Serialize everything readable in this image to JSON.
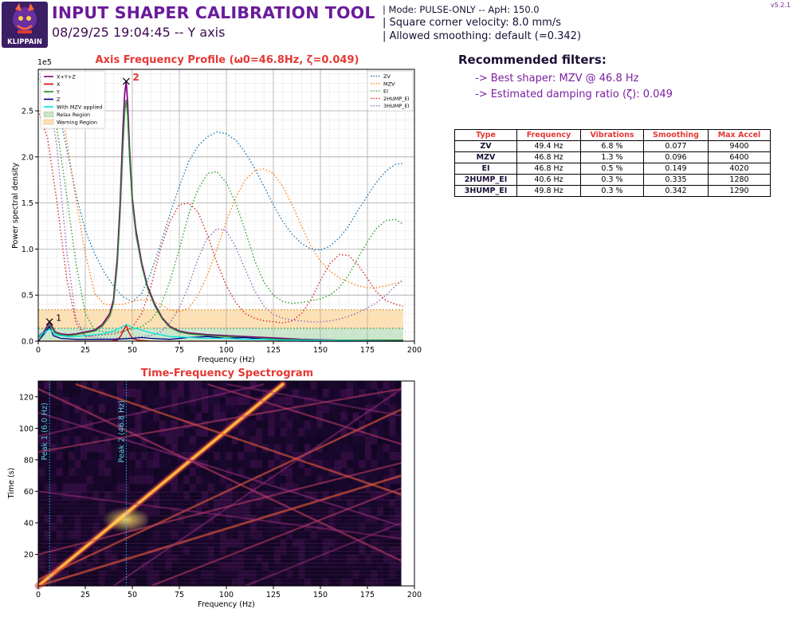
{
  "header": {
    "title": "INPUT SHAPER CALIBRATION TOOL",
    "subtitle": "08/29/25 19:04:45 -- Y axis",
    "logo_text": "KLIPPAIN",
    "version": "v5.2.1",
    "mode_line": "| Mode: PULSE-ONLY -- ApH: 150.0",
    "velocity_line": "| Square corner velocity: 8.0 mm/s",
    "smoothing_line": "| Allowed smoothing: default (=0.342)"
  },
  "recommendations": {
    "title": "Recommended filters:",
    "best": "-> Best shaper: MZV @ 46.8 Hz",
    "damping": "-> Estimated damping ratio (ζ): 0.049"
  },
  "filters_table": {
    "headers": [
      "Type",
      "Frequency",
      "Vibrations",
      "Smoothing",
      "Max Accel"
    ],
    "rows": [
      [
        "ZV",
        "49.4 Hz",
        "6.8 %",
        "0.077",
        "9400"
      ],
      [
        "MZV",
        "46.8 Hz",
        "1.3 %",
        "0.096",
        "6400"
      ],
      [
        "EI",
        "46.8 Hz",
        "0.5 %",
        "0.149",
        "4020"
      ],
      [
        "2HUMP_EI",
        "40.6 Hz",
        "0.3 %",
        "0.335",
        "1280"
      ],
      [
        "3HUMP_EI",
        "49.8 Hz",
        "0.3 %",
        "0.342",
        "1290"
      ]
    ]
  },
  "colors": {
    "title_purple": "#6a1b9a",
    "chart_title": "#e53935",
    "relax_region": "#c8e6c9",
    "warning_region": "#ffe0b2"
  },
  "chart_data": [
    {
      "type": "line",
      "title": "Axis Frequency Profile (ω0=46.8Hz, ζ=0.049)",
      "xlabel": "Frequency (Hz)",
      "ylabel": "Power spectral density",
      "y_exponent": "1e5",
      "xlim": [
        0,
        200
      ],
      "ylim": [
        0,
        2.95
      ],
      "xticks": [
        0,
        25,
        50,
        75,
        100,
        125,
        150,
        175,
        200
      ],
      "yticks": [
        0.0,
        0.5,
        1.0,
        1.5,
        2.0,
        2.5
      ],
      "grid": true,
      "relax_region": [
        0,
        0.14
      ],
      "warning_region": [
        0.14,
        0.34
      ],
      "peaks": [
        {
          "label": "1",
          "x": 6.0,
          "y": 0.21
        },
        {
          "label": "2",
          "x": 46.8,
          "y": 2.82
        }
      ],
      "legend_left": [
        "X+Y+Z",
        "X",
        "Y",
        "Z",
        "With MZV applied",
        "Relax Region",
        "Warning Region"
      ],
      "legend_left_colors": [
        "#800080",
        "#e00000",
        "#228b22",
        "#00008b",
        "#00e5e5",
        "#c8e6c9",
        "#ffe0b2"
      ],
      "series": [
        {
          "name": "X+Y+Z",
          "color": "#800080",
          "x": [
            0,
            3,
            6,
            9,
            12,
            16,
            20,
            25,
            30,
            34,
            38,
            40,
            42,
            43.5,
            45,
            46,
            46.8,
            47.5,
            48.5,
            50,
            52,
            55,
            58,
            62,
            66,
            70,
            75,
            80,
            90,
            100,
            110,
            120,
            130,
            140,
            150,
            160,
            170,
            180,
            194
          ],
          "y": [
            0.05,
            0.1,
            0.21,
            0.1,
            0.08,
            0.07,
            0.08,
            0.1,
            0.12,
            0.18,
            0.3,
            0.45,
            0.9,
            1.5,
            2.3,
            2.7,
            2.82,
            2.6,
            2.1,
            1.55,
            1.2,
            0.85,
            0.6,
            0.4,
            0.25,
            0.16,
            0.11,
            0.09,
            0.07,
            0.06,
            0.05,
            0.04,
            0.03,
            0.02,
            0.015,
            0.01,
            0.01,
            0.01,
            0.01
          ]
        },
        {
          "name": "X",
          "color": "#e00000",
          "x": [
            0,
            38,
            42,
            44,
            45.5,
            46.8,
            48,
            50,
            53,
            60,
            194
          ],
          "y": [
            0.0,
            0.0,
            0.01,
            0.06,
            0.13,
            0.17,
            0.1,
            0.03,
            0.01,
            0.0,
            0.0
          ]
        },
        {
          "name": "Y",
          "color": "#228b22",
          "x": [
            0,
            3,
            6,
            9,
            12,
            16,
            20,
            25,
            30,
            34,
            38,
            40,
            42,
            43.5,
            45,
            46,
            46.8,
            47.5,
            48.5,
            50,
            52,
            55,
            58,
            62,
            66,
            70,
            75,
            80,
            90,
            100,
            110,
            120,
            130,
            140,
            150,
            160,
            170,
            180,
            194
          ],
          "y": [
            0.04,
            0.08,
            0.18,
            0.09,
            0.07,
            0.06,
            0.07,
            0.09,
            0.11,
            0.16,
            0.27,
            0.41,
            0.82,
            1.38,
            2.1,
            2.5,
            2.62,
            2.45,
            2.0,
            1.5,
            1.15,
            0.82,
            0.58,
            0.38,
            0.24,
            0.15,
            0.1,
            0.08,
            0.06,
            0.05,
            0.04,
            0.03,
            0.02,
            0.015,
            0.01,
            0.01,
            0.01,
            0.01,
            0.01
          ]
        },
        {
          "name": "Z",
          "color": "#00008b",
          "x": [
            0,
            4,
            6,
            8,
            12,
            20,
            30,
            40,
            50,
            55,
            60,
            70,
            80,
            90,
            100,
            110,
            120,
            130,
            140,
            194
          ],
          "y": [
            0.0,
            0.1,
            0.16,
            0.06,
            0.03,
            0.02,
            0.02,
            0.02,
            0.03,
            0.04,
            0.03,
            0.02,
            0.04,
            0.05,
            0.03,
            0.04,
            0.02,
            0.01,
            0.0,
            0.0
          ]
        },
        {
          "name": "With MZV applied",
          "color": "#00e5e5",
          "x": [
            0,
            3,
            6,
            9,
            15,
            20,
            25,
            30,
            35,
            40,
            44,
            46.8,
            50,
            55,
            60,
            65,
            70,
            80,
            90,
            100,
            110,
            120,
            130,
            140,
            194
          ],
          "y": [
            0.05,
            0.09,
            0.13,
            0.07,
            0.05,
            0.05,
            0.06,
            0.07,
            0.08,
            0.11,
            0.15,
            0.18,
            0.15,
            0.12,
            0.09,
            0.07,
            0.05,
            0.04,
            0.03,
            0.03,
            0.02,
            0.02,
            0.01,
            0.01,
            0.0
          ]
        }
      ],
      "legend_right": [
        "ZV",
        "MZV",
        "EI",
        "2HUMP_EI",
        "3HUMP_EI"
      ],
      "legend_right_colors": [
        "#1f77b4",
        "#ff7f0e",
        "#2ca02c",
        "#d62728",
        "#9467bd"
      ],
      "shapers": [
        {
          "name": "ZV",
          "color": "#1f77b4",
          "x": [
            0,
            5,
            10,
            15,
            20,
            25,
            30,
            35,
            40,
            45,
            50,
            55,
            60,
            65,
            70,
            75,
            80,
            85,
            90,
            95,
            100,
            105,
            110,
            115,
            120,
            125,
            130,
            135,
            140,
            145,
            150,
            155,
            160,
            165,
            170,
            175,
            180,
            185,
            190,
            194
          ],
          "y": [
            2.95,
            2.9,
            2.6,
            2.1,
            1.6,
            1.2,
            0.95,
            0.75,
            0.6,
            0.48,
            0.43,
            0.52,
            0.75,
            1.05,
            1.38,
            1.68,
            1.95,
            2.12,
            2.22,
            2.27,
            2.25,
            2.18,
            2.05,
            1.88,
            1.68,
            1.48,
            1.3,
            1.16,
            1.06,
            1.0,
            0.99,
            1.03,
            1.12,
            1.25,
            1.42,
            1.58,
            1.73,
            1.85,
            1.92,
            1.93
          ]
        },
        {
          "name": "MZV",
          "color": "#ff7f0e",
          "x": [
            0,
            5,
            10,
            15,
            20,
            25,
            30,
            35,
            40,
            45,
            50,
            55,
            60,
            65,
            70,
            75,
            80,
            85,
            90,
            95,
            100,
            105,
            110,
            115,
            120,
            125,
            130,
            135,
            140,
            145,
            150,
            155,
            160,
            165,
            170,
            175,
            180,
            185,
            190,
            194
          ],
          "y": [
            2.95,
            2.9,
            2.7,
            2.2,
            1.55,
            0.95,
            0.52,
            0.4,
            0.4,
            0.4,
            0.43,
            0.45,
            0.44,
            0.4,
            0.34,
            0.32,
            0.36,
            0.5,
            0.72,
            1.0,
            1.3,
            1.56,
            1.75,
            1.85,
            1.87,
            1.82,
            1.68,
            1.48,
            1.25,
            1.03,
            0.87,
            0.76,
            0.69,
            0.64,
            0.6,
            0.58,
            0.58,
            0.6,
            0.63,
            0.65
          ]
        },
        {
          "name": "EI",
          "color": "#2ca02c",
          "x": [
            0,
            5,
            10,
            15,
            20,
            25,
            30,
            35,
            40,
            45,
            50,
            55,
            60,
            65,
            70,
            75,
            80,
            85,
            90,
            95,
            100,
            105,
            110,
            115,
            120,
            125,
            130,
            135,
            140,
            145,
            150,
            155,
            160,
            165,
            170,
            175,
            180,
            185,
            190,
            194
          ],
          "y": [
            2.85,
            2.7,
            2.3,
            1.6,
            0.85,
            0.3,
            0.12,
            0.1,
            0.1,
            0.11,
            0.13,
            0.16,
            0.23,
            0.38,
            0.65,
            1.0,
            1.38,
            1.65,
            1.82,
            1.84,
            1.72,
            1.5,
            1.2,
            0.88,
            0.64,
            0.5,
            0.43,
            0.41,
            0.42,
            0.44,
            0.46,
            0.5,
            0.58,
            0.72,
            0.9,
            1.08,
            1.23,
            1.31,
            1.32,
            1.27
          ]
        },
        {
          "name": "2HUMP_EI",
          "color": "#d62728",
          "x": [
            0,
            5,
            10,
            15,
            20,
            25,
            30,
            35,
            40,
            45,
            50,
            55,
            60,
            65,
            70,
            75,
            80,
            85,
            90,
            95,
            100,
            105,
            110,
            115,
            120,
            125,
            130,
            135,
            140,
            145,
            150,
            155,
            160,
            165,
            170,
            175,
            180,
            185,
            190,
            194
          ],
          "y": [
            2.5,
            2.2,
            1.5,
            0.7,
            0.2,
            0.05,
            0.06,
            0.07,
            0.08,
            0.1,
            0.15,
            0.3,
            0.6,
            1.0,
            1.3,
            1.48,
            1.5,
            1.4,
            1.15,
            0.85,
            0.6,
            0.42,
            0.3,
            0.25,
            0.22,
            0.21,
            0.2,
            0.22,
            0.3,
            0.45,
            0.66,
            0.84,
            0.94,
            0.93,
            0.83,
            0.68,
            0.53,
            0.44,
            0.4,
            0.38
          ]
        },
        {
          "name": "3HUMP_EI",
          "color": "#9467bd",
          "x": [
            0,
            5,
            10,
            15,
            20,
            25,
            30,
            35,
            40,
            45,
            50,
            55,
            60,
            65,
            70,
            75,
            80,
            85,
            90,
            95,
            100,
            105,
            110,
            115,
            120,
            125,
            130,
            135,
            140,
            145,
            150,
            155,
            160,
            165,
            170,
            175,
            180,
            185,
            190,
            194
          ],
          "y": [
            2.9,
            2.75,
            2.1,
            1.0,
            0.25,
            0.06,
            0.04,
            0.03,
            0.03,
            0.03,
            0.04,
            0.05,
            0.06,
            0.1,
            0.2,
            0.36,
            0.6,
            0.9,
            1.12,
            1.22,
            1.2,
            1.02,
            0.78,
            0.55,
            0.38,
            0.29,
            0.25,
            0.23,
            0.22,
            0.21,
            0.21,
            0.22,
            0.24,
            0.27,
            0.31,
            0.36,
            0.42,
            0.5,
            0.6,
            0.67
          ]
        }
      ]
    },
    {
      "type": "heatmap",
      "title": "Time-Frequency Spectrogram",
      "xlabel": "Frequency (Hz)",
      "ylabel": "Time (s)",
      "xlim": [
        0,
        200
      ],
      "ylim": [
        0,
        130
      ],
      "xticks": [
        0,
        25,
        50,
        75,
        100,
        125,
        150,
        175,
        200
      ],
      "yticks": [
        20,
        40,
        60,
        80,
        100,
        120
      ],
      "data_xmax": 193,
      "peak_lines": [
        {
          "label": "Peak 1 (6.0 Hz)",
          "x": 6.0
        },
        {
          "label": "Peak 2 (46.8 Hz)",
          "x": 46.8
        }
      ],
      "ridges": [
        {
          "from": [
            0,
            0
          ],
          "to": [
            130,
            128
          ],
          "intensity": 1.0,
          "width": 2.0
        },
        {
          "from": [
            0,
            0
          ],
          "to": [
            193,
            70
          ],
          "intensity": 0.55,
          "width": 1.2
        },
        {
          "from": [
            0,
            4
          ],
          "to": [
            193,
            112
          ],
          "intensity": 0.5,
          "width": 1.0
        },
        {
          "from": [
            0,
            20
          ],
          "to": [
            193,
            78
          ],
          "intensity": 0.35,
          "width": 0.8
        },
        {
          "from": [
            20,
            128
          ],
          "to": [
            193,
            58
          ],
          "intensity": 0.5,
          "width": 1.0
        },
        {
          "from": [
            0,
            125
          ],
          "to": [
            193,
            16
          ],
          "intensity": 0.4,
          "width": 1.0
        },
        {
          "from": [
            0,
            110
          ],
          "to": [
            193,
            38
          ],
          "intensity": 0.3,
          "width": 0.8
        },
        {
          "from": [
            0,
            85
          ],
          "to": [
            193,
            125
          ],
          "intensity": 0.35,
          "width": 0.8
        },
        {
          "from": [
            60,
            0
          ],
          "to": [
            193,
            62
          ],
          "intensity": 0.35,
          "width": 0.8
        },
        {
          "from": [
            90,
            128
          ],
          "to": [
            193,
            90
          ],
          "intensity": 0.35,
          "width": 0.8
        },
        {
          "from": [
            40,
            0
          ],
          "to": [
            193,
            125
          ],
          "intensity": 0.25,
          "width": 0.8
        },
        {
          "from": [
            0,
            60
          ],
          "to": [
            193,
            30
          ],
          "intensity": 0.25,
          "width": 0.8
        },
        {
          "from": [
            110,
            0
          ],
          "to": [
            193,
            40
          ],
          "intensity": 0.25,
          "width": 0.8
        },
        {
          "from": [
            0,
            95
          ],
          "to": [
            120,
            128
          ],
          "intensity": 0.25,
          "width": 0.8
        },
        {
          "from": [
            100,
            128
          ],
          "to": [
            193,
            108
          ],
          "intensity": 0.2,
          "width": 0.8
        }
      ]
    }
  ]
}
